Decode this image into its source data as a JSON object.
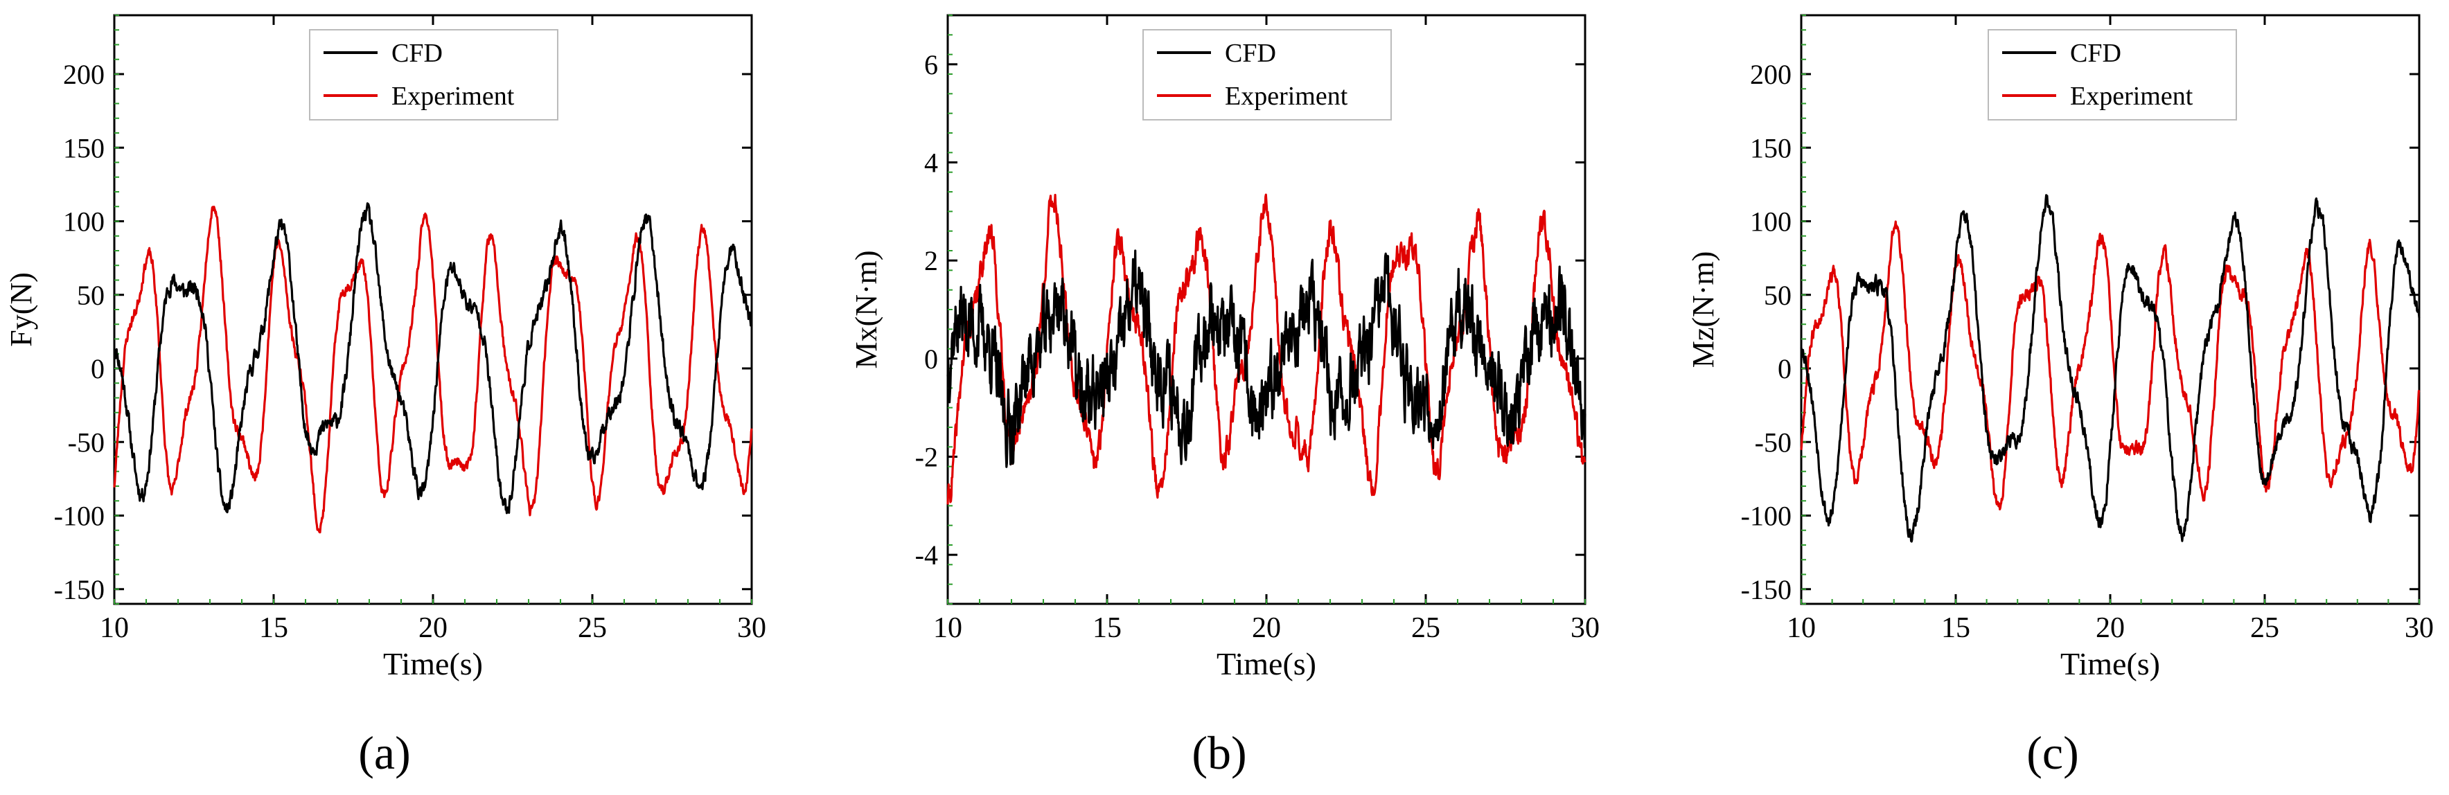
{
  "colors": {
    "cfd": "#000000",
    "experiment": "#e00000",
    "minor_tick": "#2e9e2e"
  },
  "legend": {
    "cfd": "CFD",
    "experiment": "Experiment"
  },
  "panel_labels": [
    "(a)",
    "(b)",
    "(c)"
  ],
  "chart_data": [
    {
      "type": "line",
      "ylabel": "Fy(N)",
      "xlabel": "Time(s)",
      "xlim": [
        10,
        30
      ],
      "ylim": [
        -160,
        240
      ],
      "xticks": [
        10,
        15,
        20,
        25,
        30
      ],
      "yticks": [
        -150,
        -100,
        -50,
        0,
        50,
        100,
        150,
        200
      ],
      "legend_location": "top-center",
      "series": [
        {
          "name": "CFD",
          "amp": 75,
          "period": 2.9,
          "phase": 0.3,
          "noise": 6,
          "seed": 11,
          "bias": 5
        },
        {
          "name": "Experiment",
          "amp": 80,
          "period": 2.2,
          "phase": 1.9,
          "noise": 4,
          "seed": 23,
          "bias": 0
        }
      ]
    },
    {
      "type": "line",
      "ylabel": "Mx(N·m)",
      "xlabel": "Time(s)",
      "xlim": [
        10,
        30
      ],
      "ylim": [
        -5,
        7
      ],
      "xticks": [
        10,
        15,
        20,
        25,
        30
      ],
      "yticks": [
        -4,
        -2,
        0,
        2,
        4,
        6
      ],
      "legend_location": "top-center",
      "series": [
        {
          "name": "CFD",
          "amp": 1.0,
          "period": 2.6,
          "phase": 0.8,
          "noise": 0.8,
          "seed": 37,
          "bias": 0
        },
        {
          "name": "Experiment",
          "amp": 2.2,
          "period": 2.2,
          "phase": 1.2,
          "noise": 0.3,
          "seed": 41,
          "bias": 0.2
        }
      ]
    },
    {
      "type": "line",
      "ylabel": "Mz(N·m)",
      "xlabel": "Time(s)",
      "xlim": [
        10,
        30
      ],
      "ylim": [
        -160,
        240
      ],
      "xticks": [
        10,
        15,
        20,
        25,
        30
      ],
      "yticks": [
        -150,
        -100,
        -50,
        0,
        50,
        100,
        150,
        200
      ],
      "legend_location": "top-center",
      "series": [
        {
          "name": "CFD",
          "amp": 85,
          "period": 2.9,
          "phase": 0.2,
          "noise": 6,
          "seed": 53,
          "bias": 0
        },
        {
          "name": "Experiment",
          "amp": 70,
          "period": 2.2,
          "phase": 2.1,
          "noise": 5,
          "seed": 67,
          "bias": 0
        }
      ]
    }
  ]
}
